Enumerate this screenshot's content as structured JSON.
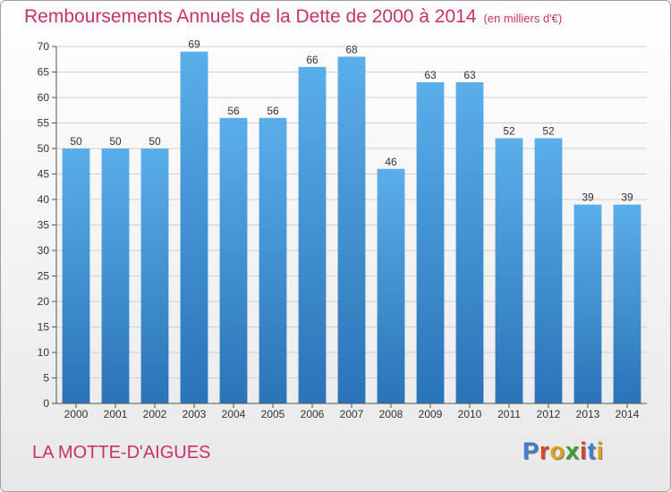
{
  "header": {
    "title": "Remboursements Annuels de la Dette de 2000 à 2014",
    "subtitle": "(en milliers d'€)"
  },
  "footer": {
    "commune": "LA MOTTE-D'AIGUES"
  },
  "brand": {
    "letters": [
      "P",
      "r",
      "o",
      "x",
      "i",
      "t",
      "i"
    ],
    "colors": [
      "#3f7fd0",
      "#d9442a",
      "#e5a01b",
      "#3e9e3a",
      "#d9442a",
      "#3f7fd0",
      "#e5a01b"
    ]
  },
  "colors": {
    "accent": "#c8306e",
    "bar_top": "#5aaeea",
    "bar_bottom": "#2a73b8",
    "grid": "#d0d0d0"
  },
  "chart_data": {
    "type": "bar",
    "title": "Remboursements Annuels de la Dette de 2000 à 2014",
    "subtitle": "(en milliers d'€)",
    "categories": [
      "2000",
      "2001",
      "2002",
      "2003",
      "2004",
      "2005",
      "2006",
      "2007",
      "2008",
      "2009",
      "2010",
      "2011",
      "2012",
      "2013",
      "2014"
    ],
    "values": [
      50,
      50,
      50,
      69,
      56,
      56,
      66,
      68,
      46,
      63,
      63,
      52,
      52,
      39,
      39
    ],
    "xlabel": "",
    "ylabel": "",
    "ylim": [
      0,
      70
    ],
    "yticks": [
      0,
      5,
      10,
      15,
      20,
      25,
      30,
      35,
      40,
      45,
      50,
      55,
      60,
      65,
      70
    ],
    "grid": true
  }
}
